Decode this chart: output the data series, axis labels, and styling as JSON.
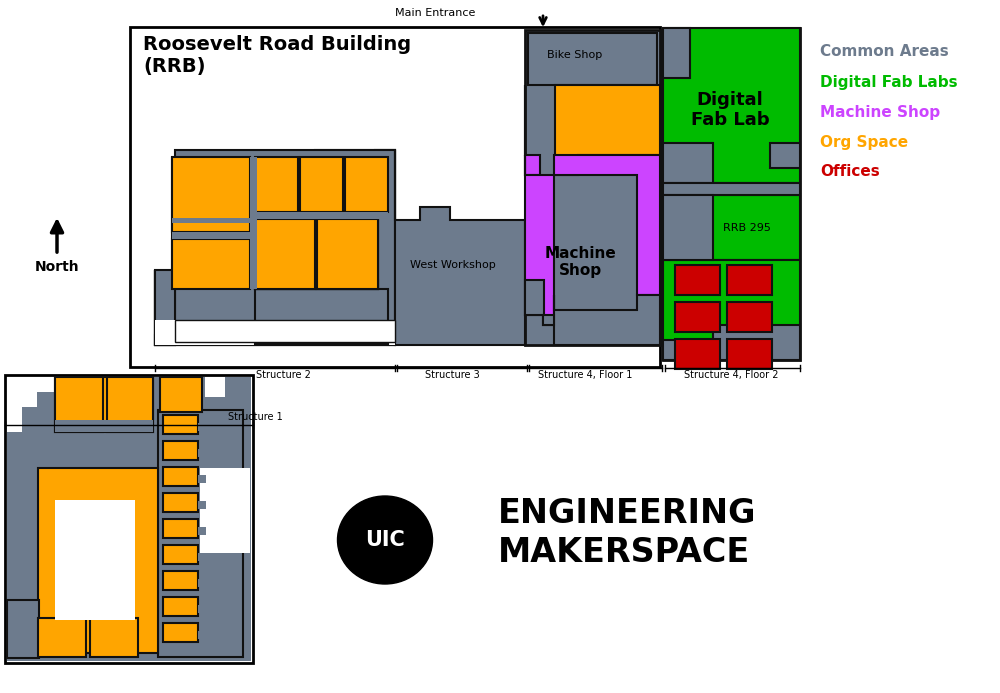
{
  "colors": {
    "gray": "#6d7b8d",
    "green": "#00bb00",
    "purple": "#cc44ff",
    "orange": "#ffa500",
    "red": "#cc0000",
    "white": "#ffffff",
    "black": "#000000",
    "out": "#111111"
  },
  "legend_items": [
    [
      "Common Areas",
      "#6d7b8d"
    ],
    [
      "Digital Fab Labs",
      "#00bb00"
    ],
    [
      "Machine Shop",
      "#cc44ff"
    ],
    [
      "Org Space",
      "#ffa500"
    ],
    [
      "Offices",
      "#cc0000"
    ]
  ],
  "main_title": "Roosevelt Road Building\n(RRB)",
  "north_label": "North",
  "structure_labels": [
    [
      283,
      370,
      "Structure 2"
    ],
    [
      452,
      370,
      "Structure 3"
    ],
    [
      585,
      370,
      "Structure 4, Floor 1"
    ],
    [
      731,
      370,
      "Structure 4, Floor 2"
    ],
    [
      255,
      412,
      "Structure 1"
    ]
  ],
  "room_labels": [
    [
      575,
      55,
      "Bike Shop",
      8,
      "normal"
    ],
    [
      575,
      262,
      "Machine\nShop",
      11,
      "bold"
    ],
    [
      730,
      110,
      "Digital\nFab Lab",
      13,
      "bold"
    ],
    [
      710,
      242,
      "RRB 295",
      8,
      "normal"
    ],
    [
      453,
      265,
      "West Workshop",
      8,
      "normal"
    ]
  ],
  "main_entrance_text": "Main Entrance",
  "uic_text": "UIC",
  "makerspace_text": "ENGINEERING\nMAKERSPACE"
}
